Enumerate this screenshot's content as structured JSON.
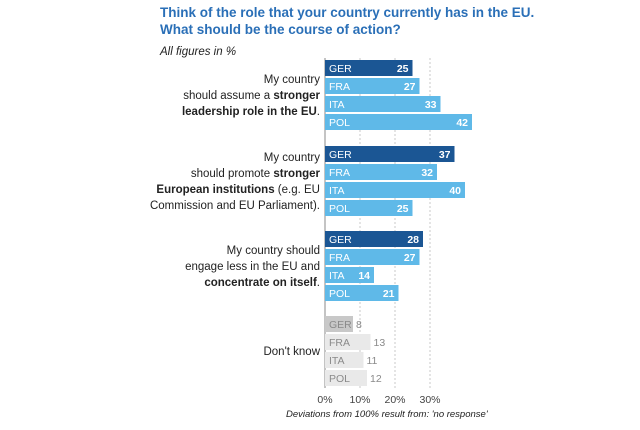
{
  "title_line1": "Think of the role that your country currently has in the EU.",
  "title_line2": "What should be the course of action?",
  "subtitle": "All figures in %",
  "footnote": "Deviations from 100% result from: 'no response'",
  "colors": {
    "GER": "#1b5694",
    "other": "#5fb9e8",
    "dk_GER": "#c8c8c8",
    "dk_other": "#e9e9e9",
    "label_on_dark": "#ffffff",
    "label_on_light": "#ffffff",
    "label_on_grey": "#8a8a8a"
  },
  "chart_data": {
    "type": "bar",
    "orientation": "horizontal",
    "categories": [
      "GER",
      "FRA",
      "ITA",
      "POL"
    ],
    "groups": [
      {
        "label_lines": [
          [
            {
              "t": "My country",
              "b": false
            }
          ],
          [
            {
              "t": "should assume a ",
              "b": false
            },
            {
              "t": "stronger",
              "b": true
            }
          ],
          [
            {
              "t": "leadership role in the EU",
              "b": true
            },
            {
              "t": ".",
              "b": false
            }
          ]
        ],
        "values": [
          25,
          27,
          33,
          42
        ]
      },
      {
        "label_lines": [
          [
            {
              "t": "My country",
              "b": false
            }
          ],
          [
            {
              "t": "should promote ",
              "b": false
            },
            {
              "t": "stronger",
              "b": true
            }
          ],
          [
            {
              "t": "European institutions",
              "b": true
            },
            {
              "t": " (e.g. EU",
              "b": false
            }
          ],
          [
            {
              "t": "Commission and EU Parliament).",
              "b": false
            }
          ]
        ],
        "values": [
          37,
          32,
          40,
          25
        ]
      },
      {
        "label_lines": [
          [
            {
              "t": "My country should",
              "b": false
            }
          ],
          [
            {
              "t": "engage less in the EU and",
              "b": false
            }
          ],
          [
            {
              "t": "concentrate on itself",
              "b": true
            },
            {
              "t": ".",
              "b": false
            }
          ]
        ],
        "values": [
          28,
          27,
          14,
          21
        ]
      },
      {
        "label_lines": [
          [
            {
              "t": "Don't know",
              "b": false
            }
          ]
        ],
        "values": [
          8,
          13,
          11,
          12
        ],
        "muted": true
      }
    ],
    "x_ticks": [
      "0%",
      "10%",
      "20%",
      "30%"
    ],
    "xlim": [
      0,
      45
    ],
    "grid": true
  }
}
